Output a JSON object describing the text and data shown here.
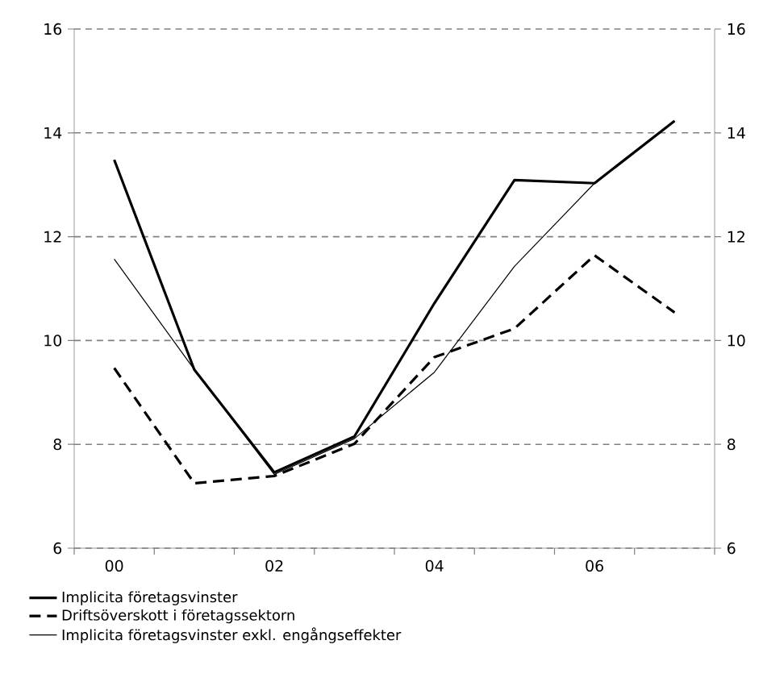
{
  "chart_data": {
    "type": "line",
    "categories": [
      "00",
      null,
      "02",
      null,
      "04",
      null,
      "06",
      null
    ],
    "series": [
      {
        "name": "Implicita företagsvinster",
        "color": "#000000",
        "line_style": "solid",
        "values": [
          13.48,
          9.44,
          7.46,
          8.15,
          10.72,
          13.09,
          13.03,
          14.23
        ]
      },
      {
        "name": "Driftsöverskott i företagssektorn",
        "color": "#000000",
        "line_style": "dashed",
        "values": [
          9.47,
          7.25,
          7.39,
          8.01,
          9.68,
          10.23,
          11.64,
          10.54
        ]
      },
      {
        "name": "Implicita företagsvinster exkl. engångseffekter",
        "color": "#000000",
        "line_style": "solid",
        "values": [
          11.57,
          9.44,
          7.42,
          8.11,
          9.39,
          11.43,
          13.03,
          14.23
        ]
      }
    ],
    "ylim": [
      6,
      16
    ],
    "yticks": [
      6,
      8,
      10,
      12,
      14,
      16
    ],
    "y2lim": [
      6,
      16
    ],
    "y2ticks": [
      6,
      8,
      10,
      12,
      14,
      16
    ],
    "grid": "y",
    "legend": "bottom",
    "marker": "none"
  }
}
